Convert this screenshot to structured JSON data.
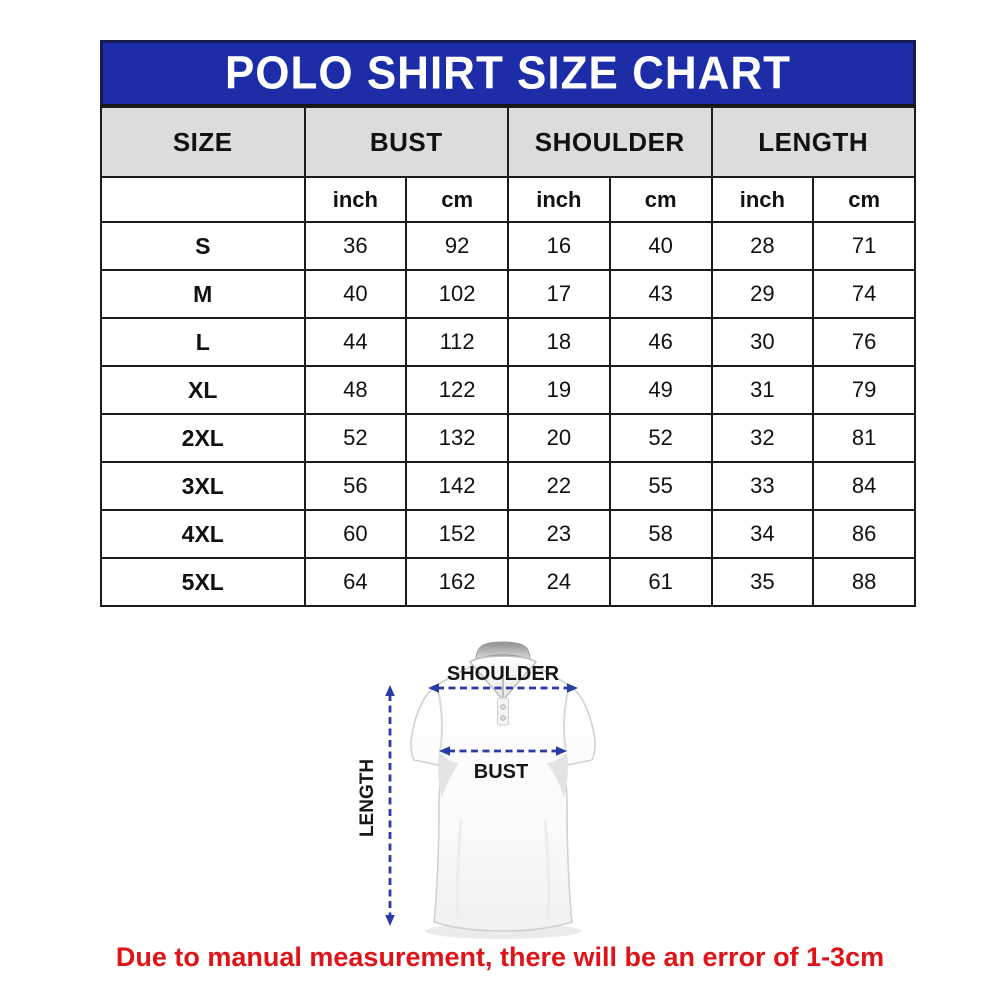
{
  "chart_data": {
    "type": "table",
    "title": "POLO SHIRT SIZE CHART",
    "column_groups": [
      "SIZE",
      "BUST",
      "SHOULDER",
      "LENGTH"
    ],
    "sub_columns": [
      "inch",
      "cm",
      "inch",
      "cm",
      "inch",
      "cm"
    ],
    "rows": [
      {
        "size": "S",
        "values": [
          "36",
          "92",
          "16",
          "40",
          "28",
          "71"
        ]
      },
      {
        "size": "M",
        "values": [
          "40",
          "102",
          "17",
          "43",
          "29",
          "74"
        ]
      },
      {
        "size": "L",
        "values": [
          "44",
          "112",
          "18",
          "46",
          "30",
          "76"
        ]
      },
      {
        "size": "XL",
        "values": [
          "48",
          "122",
          "19",
          "49",
          "31",
          "79"
        ]
      },
      {
        "size": "2XL",
        "values": [
          "52",
          "132",
          "20",
          "52",
          "32",
          "81"
        ]
      },
      {
        "size": "3XL",
        "values": [
          "56",
          "142",
          "22",
          "55",
          "33",
          "84"
        ]
      },
      {
        "size": "4XL",
        "values": [
          "60",
          "152",
          "23",
          "58",
          "34",
          "86"
        ]
      },
      {
        "size": "5XL",
        "values": [
          "64",
          "162",
          "24",
          "61",
          "35",
          "88"
        ]
      }
    ]
  },
  "diagram": {
    "shoulder_label": "SHOULDER",
    "bust_label": "BUST",
    "length_label": "LENGTH"
  },
  "note": {
    "text": "Due to manual measurement, there will be an error of 1-3cm"
  },
  "colors": {
    "title_bg": "#1d2ca7",
    "title_border": "#161b52",
    "header_bg": "#dcdcdc",
    "grid": "#1b1b1b",
    "arrow_blue": "#2a3aa6",
    "note_red": "#df1418"
  }
}
